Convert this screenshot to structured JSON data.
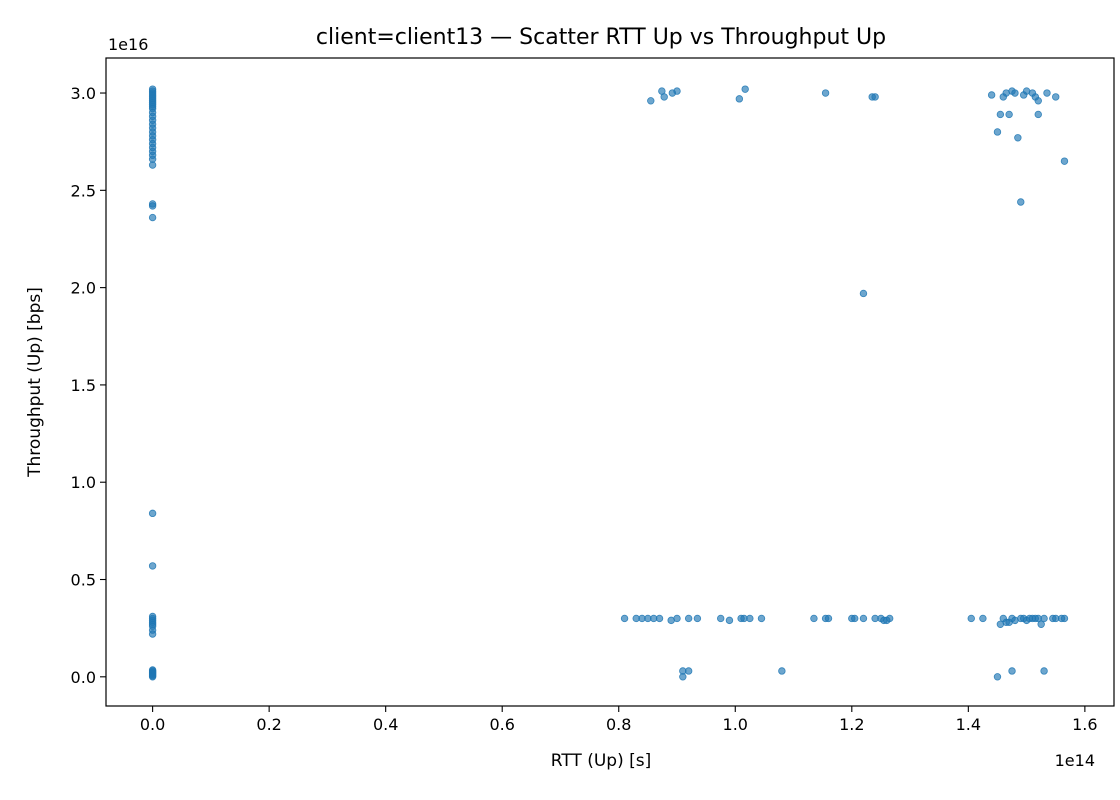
{
  "chart_data": {
    "type": "scatter",
    "title": "client=client13 — Scatter RTT Up vs Throughput Up",
    "xlabel": "RTT (Up) [s]",
    "ylabel": "Throughput (Up) [bps]",
    "x_offset_label": "1e14",
    "y_offset_label": "1e16",
    "x_scale": 100000000000000.0,
    "y_scale": 1e+16,
    "xlim": [
      -0.08,
      1.65
    ],
    "ylim": [
      -0.15,
      3.18
    ],
    "x_ticks": [
      0.0,
      0.2,
      0.4,
      0.6,
      0.8,
      1.0,
      1.2,
      1.4,
      1.6
    ],
    "x_tick_labels": [
      "0.0",
      "0.2",
      "0.4",
      "0.6",
      "0.8",
      "1.0",
      "1.2",
      "1.4",
      "1.6"
    ],
    "y_ticks": [
      0.0,
      0.5,
      1.0,
      1.5,
      2.0,
      2.5,
      3.0
    ],
    "y_tick_labels": [
      "0.0",
      "0.5",
      "1.0",
      "1.5",
      "2.0",
      "2.5",
      "3.0"
    ],
    "grid": false,
    "color": "#1f77b4",
    "series": [
      {
        "name": "",
        "points": [
          [
            0,
            3.02
          ],
          [
            0,
            3.01
          ],
          [
            0,
            3.0
          ],
          [
            0,
            2.99
          ],
          [
            0,
            2.98
          ],
          [
            0,
            2.97
          ],
          [
            0,
            2.96
          ],
          [
            0,
            2.95
          ],
          [
            0,
            2.94
          ],
          [
            0,
            2.93
          ],
          [
            0,
            2.92
          ],
          [
            0,
            2.9
          ],
          [
            0,
            2.88
          ],
          [
            0,
            2.86
          ],
          [
            0,
            2.84
          ],
          [
            0,
            2.82
          ],
          [
            0,
            2.8
          ],
          [
            0,
            2.78
          ],
          [
            0,
            2.76
          ],
          [
            0,
            2.74
          ],
          [
            0,
            2.72
          ],
          [
            0,
            2.7
          ],
          [
            0,
            2.68
          ],
          [
            0,
            2.66
          ],
          [
            0,
            2.63
          ],
          [
            0,
            2.43
          ],
          [
            0,
            2.42
          ],
          [
            0,
            2.36
          ],
          [
            0,
            0.84
          ],
          [
            0,
            0.57
          ],
          [
            0,
            0.31
          ],
          [
            0,
            0.3
          ],
          [
            0,
            0.29
          ],
          [
            0,
            0.28
          ],
          [
            0,
            0.27
          ],
          [
            0,
            0.26
          ],
          [
            0,
            0.24
          ],
          [
            0,
            0.22
          ],
          [
            0,
            0.035
          ],
          [
            0,
            0.03
          ],
          [
            0,
            0.025
          ],
          [
            0,
            0.02
          ],
          [
            0,
            0.015
          ],
          [
            0,
            0.01
          ],
          [
            0,
            0.005
          ],
          [
            0,
            0.0
          ],
          [
            0.855,
            2.96
          ],
          [
            0.874,
            3.01
          ],
          [
            0.878,
            2.98
          ],
          [
            0.892,
            3.0
          ],
          [
            0.9,
            3.01
          ],
          [
            1.007,
            2.97
          ],
          [
            1.017,
            3.02
          ],
          [
            1.155,
            3.0
          ],
          [
            1.235,
            2.98
          ],
          [
            1.24,
            2.98
          ],
          [
            1.44,
            2.99
          ],
          [
            1.45,
            2.8
          ],
          [
            1.455,
            2.89
          ],
          [
            1.46,
            2.98
          ],
          [
            1.465,
            3.0
          ],
          [
            1.47,
            2.89
          ],
          [
            1.475,
            3.01
          ],
          [
            1.48,
            3.0
          ],
          [
            1.485,
            2.77
          ],
          [
            1.49,
            2.44
          ],
          [
            1.495,
            2.99
          ],
          [
            1.5,
            3.01
          ],
          [
            1.51,
            3.0
          ],
          [
            1.515,
            2.98
          ],
          [
            1.52,
            2.96
          ],
          [
            1.52,
            2.89
          ],
          [
            1.535,
            3.0
          ],
          [
            1.55,
            2.98
          ],
          [
            1.565,
            2.65
          ],
          [
            1.22,
            1.97
          ],
          [
            0.81,
            0.3
          ],
          [
            0.83,
            0.3
          ],
          [
            0.84,
            0.3
          ],
          [
            0.85,
            0.3
          ],
          [
            0.86,
            0.3
          ],
          [
            0.87,
            0.3
          ],
          [
            0.89,
            0.29
          ],
          [
            0.9,
            0.3
          ],
          [
            0.92,
            0.3
          ],
          [
            0.935,
            0.3
          ],
          [
            0.975,
            0.3
          ],
          [
            0.99,
            0.29
          ],
          [
            1.01,
            0.3
          ],
          [
            1.015,
            0.3
          ],
          [
            1.025,
            0.3
          ],
          [
            1.045,
            0.3
          ],
          [
            1.135,
            0.3
          ],
          [
            1.155,
            0.3
          ],
          [
            1.16,
            0.3
          ],
          [
            1.2,
            0.3
          ],
          [
            1.205,
            0.3
          ],
          [
            1.22,
            0.3
          ],
          [
            1.24,
            0.3
          ],
          [
            1.25,
            0.3
          ],
          [
            1.255,
            0.29
          ],
          [
            1.26,
            0.29
          ],
          [
            1.265,
            0.3
          ],
          [
            1.405,
            0.3
          ],
          [
            1.425,
            0.3
          ],
          [
            1.455,
            0.27
          ],
          [
            1.46,
            0.3
          ],
          [
            1.465,
            0.28
          ],
          [
            1.47,
            0.28
          ],
          [
            1.475,
            0.3
          ],
          [
            1.48,
            0.29
          ],
          [
            1.49,
            0.3
          ],
          [
            1.495,
            0.3
          ],
          [
            1.5,
            0.29
          ],
          [
            1.505,
            0.3
          ],
          [
            1.51,
            0.3
          ],
          [
            1.515,
            0.3
          ],
          [
            1.52,
            0.3
          ],
          [
            1.525,
            0.27
          ],
          [
            1.53,
            0.3
          ],
          [
            1.545,
            0.3
          ],
          [
            1.55,
            0.3
          ],
          [
            1.56,
            0.3
          ],
          [
            1.565,
            0.3
          ],
          [
            0.91,
            0.03
          ],
          [
            0.91,
            0.0
          ],
          [
            0.92,
            0.03
          ],
          [
            1.08,
            0.03
          ],
          [
            1.45,
            0.0
          ],
          [
            1.475,
            0.03
          ],
          [
            1.53,
            0.03
          ]
        ]
      }
    ]
  }
}
